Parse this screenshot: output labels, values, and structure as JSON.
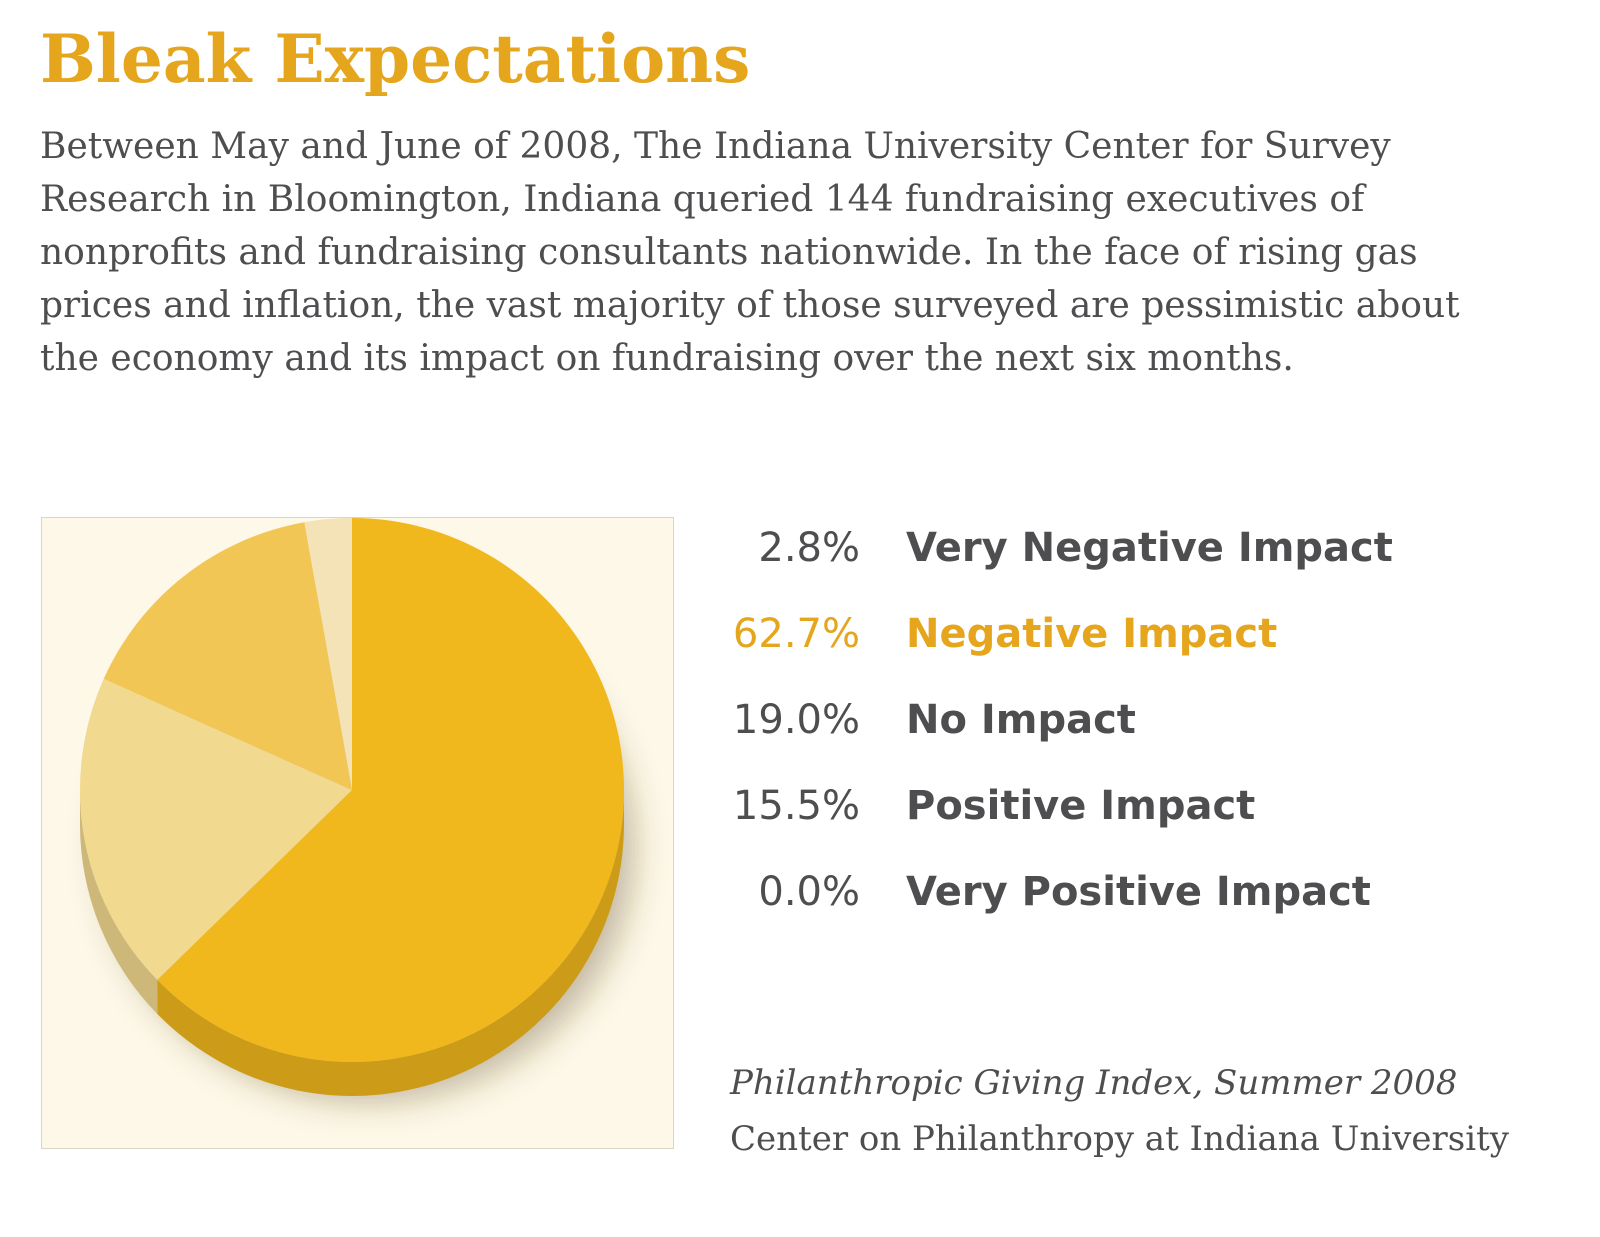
{
  "title": "Bleak Expectations",
  "description": "Between May and June of 2008, The Indiana University Center for Survey Research in Bloomington, Indiana queried 144 fundraising executives of nonprofits and fundraising consultants nationwide. In the face of rising gas prices and inflation, the vast majority of those surveyed are pessimistic about the economy and its impact on fundraising over the next six months.",
  "legend": [
    {
      "pct": "2.8%",
      "label": "Very Negative Impact"
    },
    {
      "pct": "62.7%",
      "label": "Negative Impact"
    },
    {
      "pct": "19.0%",
      "label": "No Impact"
    },
    {
      "pct": "15.5%",
      "label": "Positive Impact"
    },
    {
      "pct": "0.0%",
      "label": "Very Positive Impact"
    }
  ],
  "source": {
    "publication": "Philanthropic Giving Index, Summer 2008",
    "organization": "Center on Philanthropy at Indiana University"
  },
  "colors": {
    "accent": "#e5a51c",
    "text": "#4e4e50",
    "chart_background": "#fdf8e7"
  },
  "chart_data": {
    "type": "pie",
    "title": "",
    "categories": [
      "Very Negative Impact",
      "Negative Impact",
      "No Impact",
      "Positive Impact",
      "Very Positive Impact"
    ],
    "values": [
      2.8,
      62.7,
      19.0,
      15.5,
      0.0
    ],
    "unit": "%",
    "style": "3d",
    "slice_colors": [
      "#f3e3b6",
      "#f0b81d",
      "#f1d990",
      "#f1c655",
      "#fbf0cc"
    ]
  }
}
